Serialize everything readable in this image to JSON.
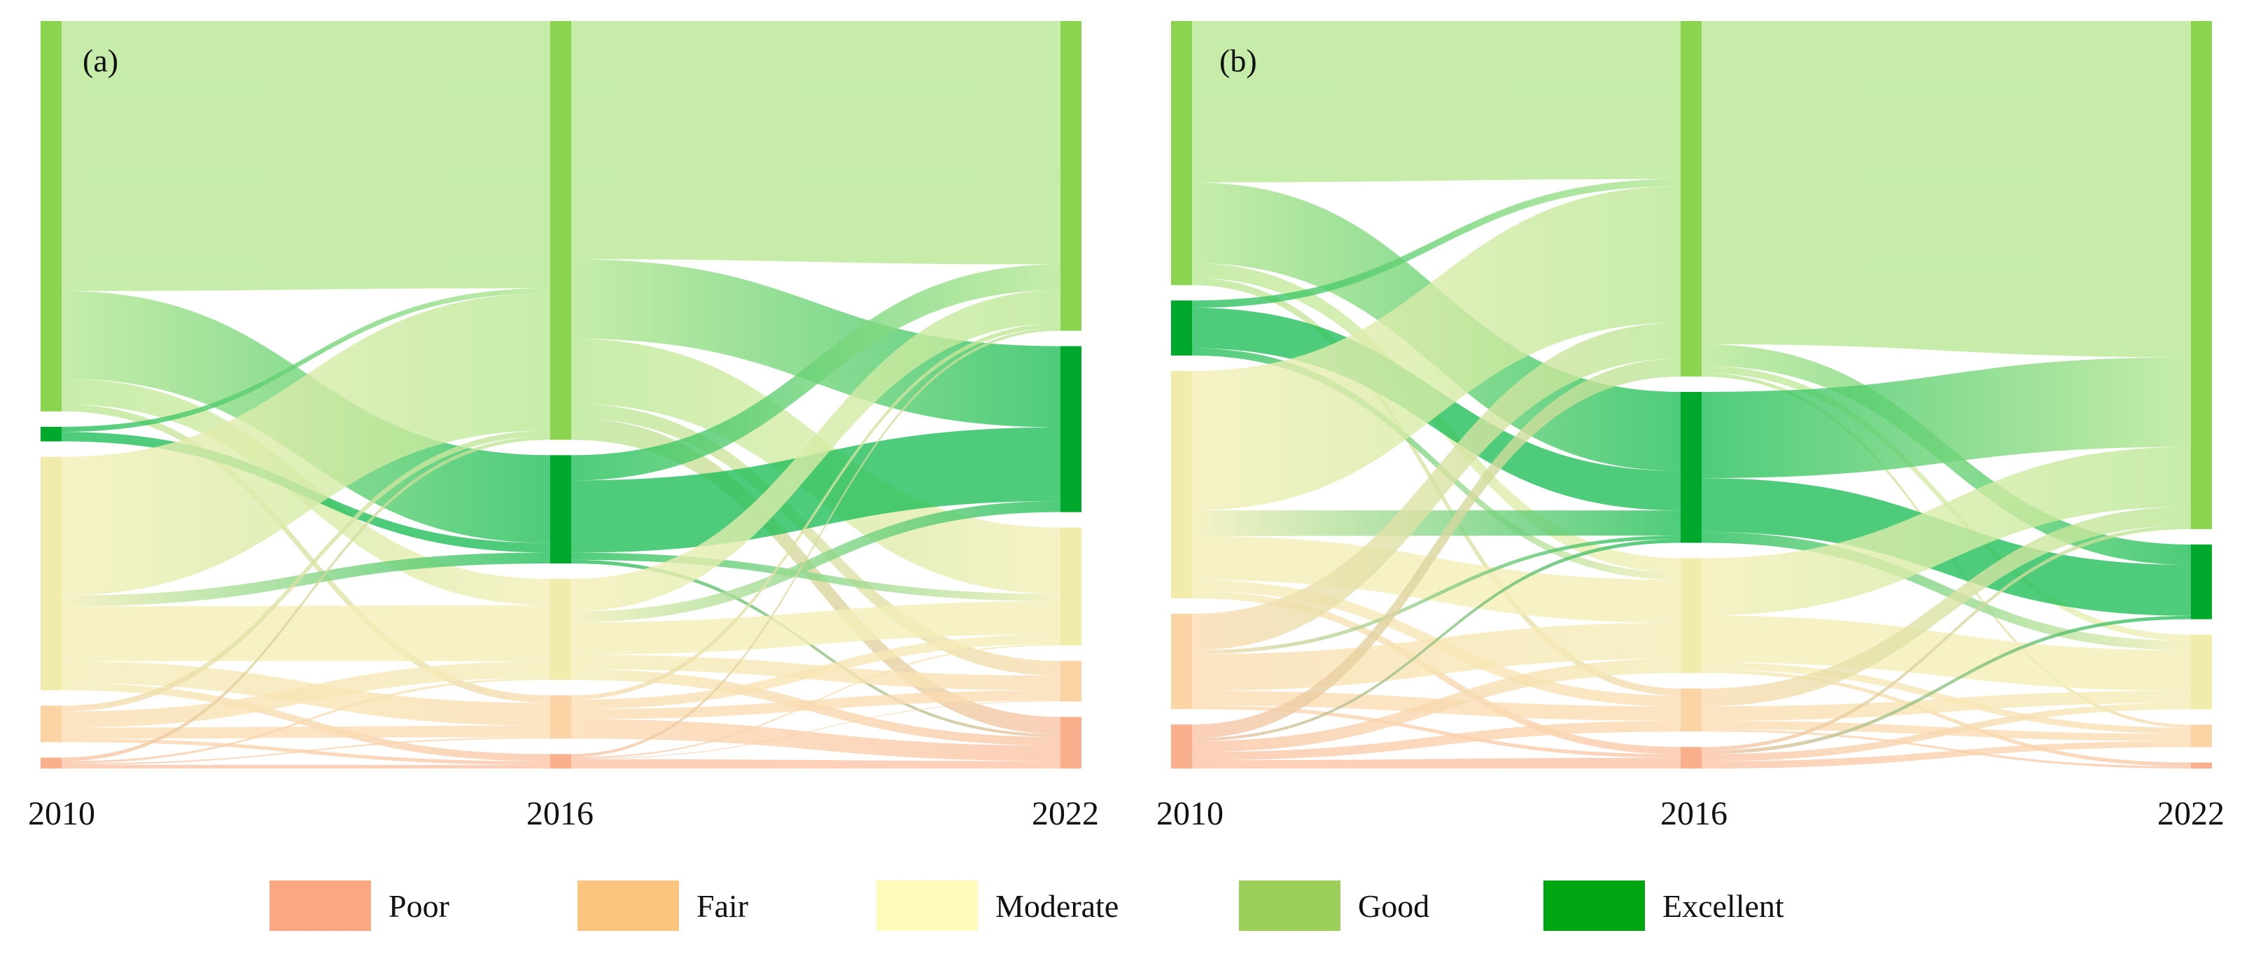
{
  "chart_data": [
    {
      "type": "sankey",
      "panel_label": "(a)",
      "stages": [
        "2010",
        "2016",
        "2022"
      ],
      "categories": [
        "Poor",
        "Fair",
        "Moderate",
        "Good",
        "Excellent"
      ],
      "nodes": {
        "2010": {
          "Good": 53.5,
          "Moderate": 32.0,
          "Excellent": 2.0,
          "Fair": 5.0,
          "Poor": 1.5
        },
        "2016": {
          "Good": 58.0,
          "Excellent": 15.0,
          "Moderate": 14.0,
          "Fair": 6.0,
          "Poor": 2.0
        },
        "2022": {
          "Good": 42.0,
          "Excellent": 22.5,
          "Moderate": 16.0,
          "Fair": 5.5,
          "Poor": 7.0
        }
      },
      "flows": [
        {
          "from_stage": "2010",
          "from": "Good",
          "to": "Good",
          "value": 37.0
        },
        {
          "from_stage": "2010",
          "from": "Good",
          "to": "Excellent",
          "value": 12.0
        },
        {
          "from_stage": "2010",
          "from": "Good",
          "to": "Moderate",
          "value": 3.5
        },
        {
          "from_stage": "2010",
          "from": "Good",
          "to": "Fair",
          "value": 1.0
        },
        {
          "from_stage": "2010",
          "from": "Moderate",
          "to": "Good",
          "value": 19.0
        },
        {
          "from_stage": "2010",
          "from": "Moderate",
          "to": "Excellent",
          "value": 1.5
        },
        {
          "from_stage": "2010",
          "from": "Moderate",
          "to": "Moderate",
          "value": 7.5
        },
        {
          "from_stage": "2010",
          "from": "Moderate",
          "to": "Fair",
          "value": 3.0
        },
        {
          "from_stage": "2010",
          "from": "Moderate",
          "to": "Poor",
          "value": 1.0
        },
        {
          "from_stage": "2010",
          "from": "Excellent",
          "to": "Good",
          "value": 0.7
        },
        {
          "from_stage": "2010",
          "from": "Excellent",
          "to": "Excellent",
          "value": 1.3
        },
        {
          "from_stage": "2010",
          "from": "Fair",
          "to": "Good",
          "value": 0.8
        },
        {
          "from_stage": "2010",
          "from": "Fair",
          "to": "Moderate",
          "value": 2.2
        },
        {
          "from_stage": "2010",
          "from": "Fair",
          "to": "Fair",
          "value": 1.5
        },
        {
          "from_stage": "2010",
          "from": "Fair",
          "to": "Poor",
          "value": 0.5
        },
        {
          "from_stage": "2010",
          "from": "Poor",
          "to": "Good",
          "value": 0.5
        },
        {
          "from_stage": "2010",
          "from": "Poor",
          "to": "Moderate",
          "value": 0.3
        },
        {
          "from_stage": "2010",
          "from": "Poor",
          "to": "Fair",
          "value": 0.2
        },
        {
          "from_stage": "2010",
          "from": "Poor",
          "to": "Poor",
          "value": 0.5
        },
        {
          "from_stage": "2016",
          "from": "Good",
          "to": "Good",
          "value": 33.0
        },
        {
          "from_stage": "2016",
          "from": "Good",
          "to": "Excellent",
          "value": 11.0
        },
        {
          "from_stage": "2016",
          "from": "Good",
          "to": "Moderate",
          "value": 9.0
        },
        {
          "from_stage": "2016",
          "from": "Good",
          "to": "Fair",
          "value": 2.0
        },
        {
          "from_stage": "2016",
          "from": "Good",
          "to": "Poor",
          "value": 3.0
        },
        {
          "from_stage": "2016",
          "from": "Excellent",
          "to": "Good",
          "value": 3.5
        },
        {
          "from_stage": "2016",
          "from": "Excellent",
          "to": "Excellent",
          "value": 10.0
        },
        {
          "from_stage": "2016",
          "from": "Excellent",
          "to": "Moderate",
          "value": 1.0
        },
        {
          "from_stage": "2016",
          "from": "Excellent",
          "to": "Poor",
          "value": 0.5
        },
        {
          "from_stage": "2016",
          "from": "Moderate",
          "to": "Good",
          "value": 4.5
        },
        {
          "from_stage": "2016",
          "from": "Moderate",
          "to": "Excellent",
          "value": 1.5
        },
        {
          "from_stage": "2016",
          "from": "Moderate",
          "to": "Moderate",
          "value": 4.5
        },
        {
          "from_stage": "2016",
          "from": "Moderate",
          "to": "Fair",
          "value": 2.0
        },
        {
          "from_stage": "2016",
          "from": "Moderate",
          "to": "Poor",
          "value": 1.5
        },
        {
          "from_stage": "2016",
          "from": "Fair",
          "to": "Good",
          "value": 0.6
        },
        {
          "from_stage": "2016",
          "from": "Fair",
          "to": "Moderate",
          "value": 1.3
        },
        {
          "from_stage": "2016",
          "from": "Fair",
          "to": "Fair",
          "value": 1.4
        },
        {
          "from_stage": "2016",
          "from": "Fair",
          "to": "Poor",
          "value": 2.7
        },
        {
          "from_stage": "2016",
          "from": "Poor",
          "to": "Good",
          "value": 0.4
        },
        {
          "from_stage": "2016",
          "from": "Poor",
          "to": "Moderate",
          "value": 0.2
        },
        {
          "from_stage": "2016",
          "from": "Poor",
          "to": "Fair",
          "value": 0.1
        },
        {
          "from_stage": "2016",
          "from": "Poor",
          "to": "Poor",
          "value": 1.3
        }
      ]
    },
    {
      "type": "sankey",
      "panel_label": "(b)",
      "stages": [
        "2010",
        "2016",
        "2022"
      ],
      "categories": [
        "Poor",
        "Fair",
        "Moderate",
        "Good",
        "Excellent"
      ],
      "nodes": {
        "2010": {
          "Good": 36.0,
          "Moderate": 31.0,
          "Excellent": 7.5,
          "Fair": 13.0,
          "Poor": 6.0
        },
        "2016": {
          "Good": 49.5,
          "Excellent": 21.0,
          "Moderate": 16.0,
          "Fair": 6.0,
          "Poor": 3.0
        },
        "2022": {
          "Good": 68.0,
          "Excellent": 10.0,
          "Moderate": 10.0,
          "Fair": 3.0,
          "Poor": 0.8
        }
      },
      "flows": [
        {
          "from_stage": "2010",
          "from": "Good",
          "to": "Good",
          "value": 22.0
        },
        {
          "from_stage": "2010",
          "from": "Good",
          "to": "Excellent",
          "value": 11.0
        },
        {
          "from_stage": "2010",
          "from": "Good",
          "to": "Moderate",
          "value": 2.0
        },
        {
          "from_stage": "2010",
          "from": "Good",
          "to": "Fair",
          "value": 1.0
        },
        {
          "from_stage": "2010",
          "from": "Moderate",
          "to": "Good",
          "value": 19.0
        },
        {
          "from_stage": "2010",
          "from": "Moderate",
          "to": "Excellent",
          "value": 3.5
        },
        {
          "from_stage": "2010",
          "from": "Moderate",
          "to": "Moderate",
          "value": 6.0
        },
        {
          "from_stage": "2010",
          "from": "Moderate",
          "to": "Fair",
          "value": 1.5
        },
        {
          "from_stage": "2010",
          "from": "Moderate",
          "to": "Poor",
          "value": 1.0
        },
        {
          "from_stage": "2010",
          "from": "Excellent",
          "to": "Good",
          "value": 1.0
        },
        {
          "from_stage": "2010",
          "from": "Excellent",
          "to": "Excellent",
          "value": 5.5
        },
        {
          "from_stage": "2010",
          "from": "Excellent",
          "to": "Moderate",
          "value": 1.0
        },
        {
          "from_stage": "2010",
          "from": "Fair",
          "to": "Good",
          "value": 5.0
        },
        {
          "from_stage": "2010",
          "from": "Fair",
          "to": "Excellent",
          "value": 0.5
        },
        {
          "from_stage": "2010",
          "from": "Fair",
          "to": "Moderate",
          "value": 5.0
        },
        {
          "from_stage": "2010",
          "from": "Fair",
          "to": "Fair",
          "value": 2.0
        },
        {
          "from_stage": "2010",
          "from": "Fair",
          "to": "Poor",
          "value": 0.5
        },
        {
          "from_stage": "2010",
          "from": "Poor",
          "to": "Good",
          "value": 2.5
        },
        {
          "from_stage": "2010",
          "from": "Poor",
          "to": "Excellent",
          "value": 0.5
        },
        {
          "from_stage": "2010",
          "from": "Poor",
          "to": "Moderate",
          "value": 2.0
        },
        {
          "from_stage": "2010",
          "from": "Poor",
          "to": "Fair",
          "value": 1.5
        },
        {
          "from_stage": "2010",
          "from": "Poor",
          "to": "Poor",
          "value": 1.5
        },
        {
          "from_stage": "2016",
          "from": "Good",
          "to": "Good",
          "value": 45.0
        },
        {
          "from_stage": "2016",
          "from": "Good",
          "to": "Excellent",
          "value": 3.0
        },
        {
          "from_stage": "2016",
          "from": "Good",
          "to": "Moderate",
          "value": 1.0
        },
        {
          "from_stage": "2016",
          "from": "Good",
          "to": "Fair",
          "value": 0.5
        },
        {
          "from_stage": "2016",
          "from": "Excellent",
          "to": "Good",
          "value": 12.0
        },
        {
          "from_stage": "2016",
          "from": "Excellent",
          "to": "Excellent",
          "value": 7.5
        },
        {
          "from_stage": "2016",
          "from": "Excellent",
          "to": "Moderate",
          "value": 1.5
        },
        {
          "from_stage": "2016",
          "from": "Moderate",
          "to": "Good",
          "value": 8.0
        },
        {
          "from_stage": "2016",
          "from": "Moderate",
          "to": "Moderate",
          "value": 6.5
        },
        {
          "from_stage": "2016",
          "from": "Moderate",
          "to": "Fair",
          "value": 1.0
        },
        {
          "from_stage": "2016",
          "from": "Moderate",
          "to": "Poor",
          "value": 0.5
        },
        {
          "from_stage": "2016",
          "from": "Fair",
          "to": "Good",
          "value": 2.5
        },
        {
          "from_stage": "2016",
          "from": "Fair",
          "to": "Moderate",
          "value": 2.0
        },
        {
          "from_stage": "2016",
          "from": "Fair",
          "to": "Fair",
          "value": 1.2
        },
        {
          "from_stage": "2016",
          "from": "Fair",
          "to": "Poor",
          "value": 0.3
        },
        {
          "from_stage": "2016",
          "from": "Poor",
          "to": "Good",
          "value": 0.5
        },
        {
          "from_stage": "2016",
          "from": "Poor",
          "to": "Excellent",
          "value": 0.5
        },
        {
          "from_stage": "2016",
          "from": "Poor",
          "to": "Moderate",
          "value": 1.0
        },
        {
          "from_stage": "2016",
          "from": "Poor",
          "to": "Fair",
          "value": 1.0
        }
      ]
    }
  ],
  "legend": {
    "placement": "bottom",
    "items": [
      {
        "name": "Poor",
        "color": "#fba882"
      },
      {
        "name": "Fair",
        "color": "#fbc57f"
      },
      {
        "name": "Moderate",
        "color": "#fefbbb"
      },
      {
        "name": "Good",
        "color": "#9ccf59"
      },
      {
        "name": "Excellent",
        "color": "#00a612"
      }
    ]
  },
  "colors": {
    "node": {
      "Good": "#8ad44f",
      "Excellent": "#00a82b",
      "Moderate": "#f2ecac",
      "Fair": "#fad4a4",
      "Poor": "#fbb08d"
    },
    "band": {
      "Good": "#b9e895",
      "Excellent": "#22bf5a",
      "Moderate": "#f4efb8",
      "Fair": "#fbdcb2",
      "Poor": "#fbc4a7"
    }
  }
}
